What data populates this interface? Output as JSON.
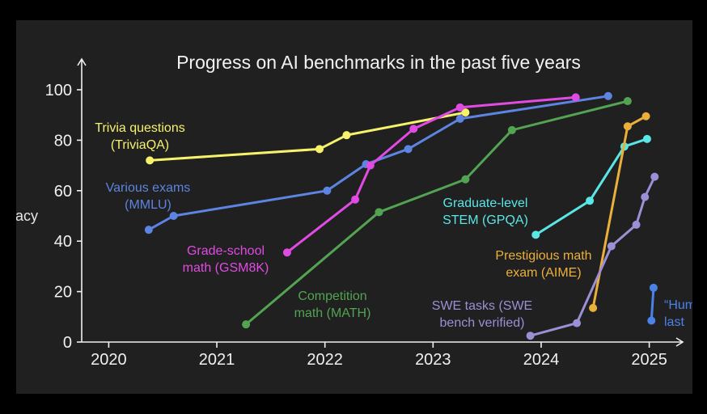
{
  "chart_data": {
    "type": "line",
    "title": "Progress on AI benchmarks in the past five years",
    "ylabel": "Accuracy",
    "xlim": [
      2019.75,
      2025.22
    ],
    "ylim": [
      0,
      100
    ],
    "x_ticks": [
      2020,
      2021,
      2022,
      2023,
      2024,
      2025
    ],
    "x_tick_labels": [
      "2020",
      "2021",
      "2022",
      "2023",
      "2024",
      "2025"
    ],
    "y_ticks": [
      0,
      20,
      40,
      60,
      80,
      100
    ],
    "y_tick_labels": [
      "0",
      "20",
      "40",
      "60",
      "80",
      "100"
    ],
    "grid": false,
    "legend": "inline labels",
    "series": [
      {
        "label_lines": [
          "Trivia questions",
          "(TriviaQA)"
        ],
        "color": "#f6f26c",
        "x": [
          2020.38,
          2021.95,
          2022.2,
          2023.3
        ],
        "y": [
          72,
          76.5,
          82,
          91
        ]
      },
      {
        "label_lines": [
          "Various exams",
          "(MMLU)"
        ],
        "color": "#5c84e0",
        "x": [
          2020.37,
          2020.6,
          2022.02,
          2022.38,
          2022.77,
          2023.25,
          2024.62
        ],
        "y": [
          44.5,
          50,
          60,
          70.5,
          76.5,
          88.5,
          97.5
        ]
      },
      {
        "label_lines": [
          "Grade-school",
          "math (GSM8K)"
        ],
        "color": "#e04be3",
        "x": [
          2021.65,
          2022.28,
          2022.42,
          2022.82,
          2023.25,
          2024.32
        ],
        "y": [
          35.5,
          56.5,
          70,
          84.5,
          93,
          97
        ]
      },
      {
        "label_lines": [
          "Competition",
          "math (MATH)"
        ],
        "color": "#52a352",
        "x": [
          2021.27,
          2022.5,
          2023.3,
          2023.73,
          2024.8
        ],
        "y": [
          7,
          51.5,
          64.5,
          84,
          95.5
        ]
      },
      {
        "label_lines": [
          "Graduate-level",
          "STEM (GPQA)"
        ],
        "color": "#5be6e6",
        "x": [
          2023.95,
          2024.45,
          2024.77,
          2024.98
        ],
        "y": [
          42.5,
          56,
          77.5,
          80.5
        ]
      },
      {
        "label_lines": [
          "Prestigious math",
          "exam (AIME)"
        ],
        "color": "#ebb03b",
        "x": [
          2024.48,
          2024.8,
          2024.97
        ],
        "y": [
          13.5,
          85.5,
          89.5
        ]
      },
      {
        "label_lines": [
          "SWE tasks (SWE",
          "bench verified)"
        ],
        "color": "#9d8fd5",
        "x": [
          2023.9,
          2024.33,
          2024.65,
          2024.88,
          2024.96,
          2025.05
        ],
        "y": [
          2.5,
          7.5,
          38,
          46.5,
          57.5,
          65.5
        ]
      },
      {
        "label_lines": [
          "“Hum",
          "last"
        ],
        "color": "#4a82e8",
        "x": [
          2025.02,
          2025.04
        ],
        "y": [
          8.5,
          21.5
        ]
      }
    ]
  }
}
